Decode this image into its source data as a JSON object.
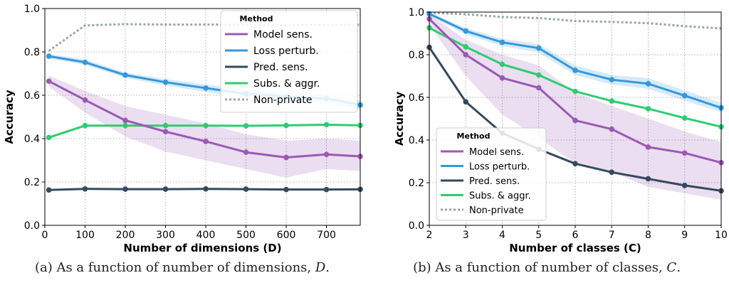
{
  "captions": [
    {
      "prefix": "(a) As a function of number of dimensions, ",
      "variable": "D",
      "suffix": "."
    },
    {
      "prefix": "(b) As a function of number of classes, ",
      "variable": "C",
      "suffix": "."
    }
  ],
  "chart_data": [
    {
      "type": "line",
      "xlabel": "Number of dimensions (D)",
      "ylabel": "Accuracy",
      "xlim": [
        0,
        784
      ],
      "ylim": [
        0,
        1.0
      ],
      "xticks": [
        0,
        100,
        200,
        300,
        400,
        500,
        600,
        700
      ],
      "xtick_labels": [
        "0",
        "100",
        "200",
        "300",
        "400",
        "500",
        "600",
        "700"
      ],
      "yticks": [
        0,
        0.2,
        0.4,
        0.6,
        0.8,
        1.0
      ],
      "ytick_labels": [
        "0.0",
        "0.2",
        "0.4",
        "0.6",
        "0.8",
        "1.0"
      ],
      "grid": true,
      "legend": {
        "title": "Method",
        "placement": "top-right"
      },
      "x": [
        10,
        100,
        200,
        300,
        400,
        500,
        600,
        700,
        784
      ],
      "series": [
        {
          "name": "Model sens.",
          "color": "#9b59b6",
          "markers": true,
          "values": [
            0.665,
            0.578,
            0.484,
            0.432,
            0.387,
            0.337,
            0.313,
            0.327,
            0.318
          ],
          "lower": [
            0.64,
            0.52,
            0.41,
            0.34,
            0.3,
            0.26,
            0.22,
            0.26,
            0.25
          ],
          "upper": [
            0.69,
            0.62,
            0.55,
            0.51,
            0.47,
            0.42,
            0.39,
            0.4,
            0.39
          ]
        },
        {
          "name": "Loss perturb.",
          "color": "#3498db",
          "markers": true,
          "values": [
            0.78,
            0.752,
            0.693,
            0.66,
            0.633,
            0.607,
            0.594,
            0.585,
            0.555
          ],
          "lower": [
            0.77,
            0.74,
            0.68,
            0.645,
            0.615,
            0.59,
            0.575,
            0.56,
            0.535
          ],
          "upper": [
            0.79,
            0.765,
            0.705,
            0.675,
            0.65,
            0.625,
            0.612,
            0.605,
            0.575
          ]
        },
        {
          "name": "Pred. sens.",
          "color": "#34495e",
          "markers": true,
          "values": [
            0.163,
            0.168,
            0.167,
            0.167,
            0.168,
            0.167,
            0.165,
            0.165,
            0.166
          ]
        },
        {
          "name": "Subs. & aggr.",
          "color": "#2ecc71",
          "markers": true,
          "values": [
            0.405,
            0.46,
            0.46,
            0.46,
            0.46,
            0.459,
            0.461,
            0.464,
            0.461
          ]
        },
        {
          "name": "Non-private",
          "color": "#95a5a6",
          "markers": false,
          "dotted": true,
          "values": [
            0.805,
            0.922,
            0.928,
            0.926,
            0.926,
            0.925,
            0.924,
            0.924,
            0.925
          ]
        }
      ]
    },
    {
      "type": "line",
      "xlabel": "Number of classes (C)",
      "ylabel": "Accuracy",
      "xlim": [
        2,
        10
      ],
      "ylim": [
        0,
        1.0
      ],
      "xticks": [
        2,
        3,
        4,
        5,
        6,
        7,
        8,
        9,
        10
      ],
      "xtick_labels": [
        "2",
        "3",
        "4",
        "5",
        "6",
        "7",
        "8",
        "9",
        "10"
      ],
      "yticks": [
        0,
        0.2,
        0.4,
        0.6,
        0.8,
        1.0
      ],
      "ytick_labels": [
        "0.0",
        "0.2",
        "0.4",
        "0.6",
        "0.8",
        "1.0"
      ],
      "grid": true,
      "legend": {
        "title": "Method",
        "placement": "bottom-left"
      },
      "x": [
        2,
        3,
        4,
        5,
        6,
        7,
        8,
        9,
        10
      ],
      "series": [
        {
          "name": "Model sens.",
          "color": "#9b59b6",
          "markers": true,
          "values": [
            0.968,
            0.8,
            0.691,
            0.645,
            0.492,
            0.451,
            0.367,
            0.339,
            0.294
          ],
          "lower": [
            0.94,
            0.7,
            0.52,
            0.41,
            0.29,
            0.25,
            0.18,
            0.15,
            0.12
          ],
          "upper": [
            0.99,
            0.87,
            0.8,
            0.75,
            0.62,
            0.56,
            0.5,
            0.44,
            0.39
          ]
        },
        {
          "name": "Loss perturb.",
          "color": "#3498db",
          "markers": true,
          "values": [
            0.992,
            0.911,
            0.858,
            0.831,
            0.727,
            0.683,
            0.664,
            0.608,
            0.551
          ],
          "lower": [
            0.985,
            0.895,
            0.84,
            0.81,
            0.705,
            0.66,
            0.64,
            0.585,
            0.53
          ],
          "upper": [
            0.998,
            0.925,
            0.875,
            0.85,
            0.75,
            0.705,
            0.69,
            0.632,
            0.575
          ]
        },
        {
          "name": "Pred. sens.",
          "color": "#34495e",
          "markers": true,
          "values": [
            0.835,
            0.579,
            0.432,
            0.357,
            0.289,
            0.249,
            0.218,
            0.187,
            0.162
          ]
        },
        {
          "name": "Subs. & aggr.",
          "color": "#2ecc71",
          "markers": true,
          "values": [
            0.926,
            0.837,
            0.755,
            0.705,
            0.628,
            0.583,
            0.547,
            0.503,
            0.462
          ]
        },
        {
          "name": "Non-private",
          "color": "#95a5a6",
          "markers": false,
          "dotted": true,
          "values": [
            0.997,
            0.99,
            0.977,
            0.972,
            0.958,
            0.954,
            0.948,
            0.934,
            0.923
          ]
        }
      ]
    }
  ]
}
